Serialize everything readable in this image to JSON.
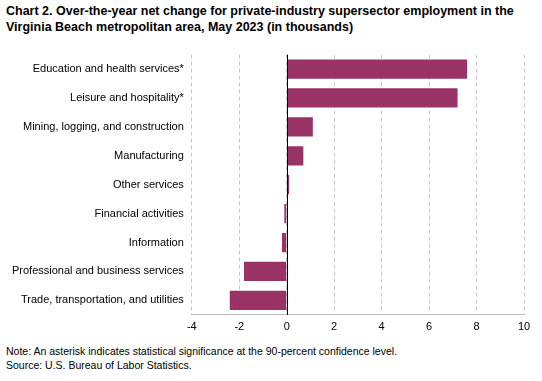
{
  "chart_data": {
    "type": "bar",
    "orientation": "horizontal",
    "title": [
      "Chart 2. Over-the-year net change for private-industry supersector employment in the",
      "Virginia Beach metropolitan area, May 2023  (in thousands)"
    ],
    "categories": [
      "Education and health services*",
      "Leisure and hospitality*",
      "Mining, logging, and construction",
      "Manufacturing",
      "Other services",
      "Financial activities",
      "Information",
      "Professional and business services",
      "Trade, transportation, and utilities"
    ],
    "values": [
      7.6,
      7.2,
      1.1,
      0.7,
      0.1,
      -0.1,
      -0.2,
      -1.8,
      -2.4
    ],
    "color": "#993366",
    "xlim": [
      -4,
      10
    ],
    "xticks": [
      -4,
      -2,
      0,
      2,
      4,
      6,
      8,
      10
    ],
    "grid": true,
    "note": "Note: An asterisk indicates statistical significance at the 90-percent confidence level.",
    "source": "Source: U.S. Bureau of Labor Statistics."
  }
}
